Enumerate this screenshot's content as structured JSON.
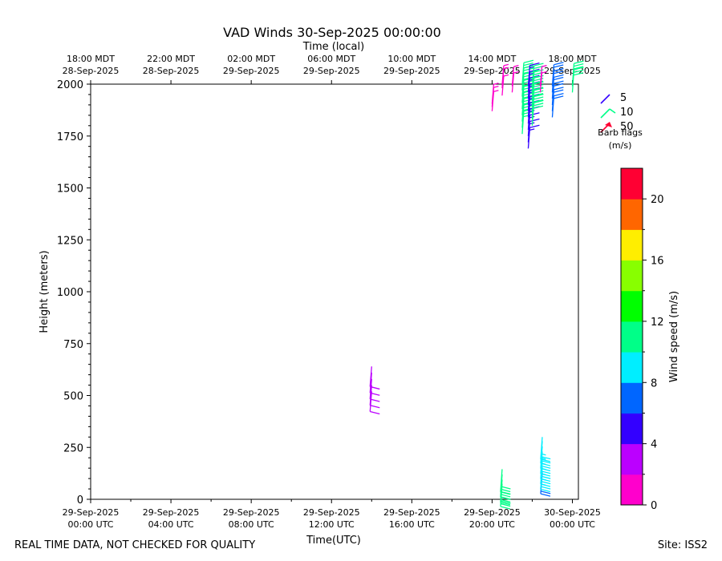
{
  "chart_data": {
    "type": "barb",
    "title": "VAD Winds 30-Sep-2025 00:00:00",
    "top_axis_label": "Time (local)",
    "xlabel": "Time(UTC)",
    "ylabel": "Height (meters)",
    "ylim": [
      0,
      2000
    ],
    "y_ticks": [
      "0",
      "250",
      "500",
      "750",
      "1000",
      "1250",
      "1500",
      "1750",
      "2000"
    ],
    "x_ticks_utc": [
      {
        "line1": "29-Sep-2025",
        "line2": "00:00 UTC"
      },
      {
        "line1": "29-Sep-2025",
        "line2": "04:00 UTC"
      },
      {
        "line1": "29-Sep-2025",
        "line2": "08:00 UTC"
      },
      {
        "line1": "29-Sep-2025",
        "line2": "12:00 UTC"
      },
      {
        "line1": "29-Sep-2025",
        "line2": "16:00 UTC"
      },
      {
        "line1": "29-Sep-2025",
        "line2": "20:00 UTC"
      },
      {
        "line1": "30-Sep-2025",
        "line2": "00:00 UTC"
      }
    ],
    "x_ticks_local": [
      {
        "line1": "18:00 MDT",
        "line2": "28-Sep-2025"
      },
      {
        "line1": "22:00 MDT",
        "line2": "28-Sep-2025"
      },
      {
        "line1": "02:00 MDT",
        "line2": "29-Sep-2025"
      },
      {
        "line1": "06:00 MDT",
        "line2": "29-Sep-2025"
      },
      {
        "line1": "10:00 MDT",
        "line2": "29-Sep-2025"
      },
      {
        "line1": "14:00 MDT",
        "line2": "29-Sep-2025"
      },
      {
        "line1": "18:00 MDT",
        "line2": "29-Sep-2025"
      }
    ],
    "barb_legend": {
      "entries": [
        "5",
        "10",
        "50"
      ],
      "caption1": "Barb flags",
      "caption2": "(m/s)"
    },
    "colorbar": {
      "label": "Wind speed (m/s)",
      "ticks": [
        "0",
        "4",
        "8",
        "12",
        "16",
        "20"
      ],
      "colors": [
        "#ff00cc",
        "#bb00ff",
        "#3300ff",
        "#0066ff",
        "#00eeff",
        "#00ff88",
        "#00ff00",
        "#88ff00",
        "#ffee00",
        "#ff6600",
        "#ff0033"
      ]
    },
    "series": [
      {
        "hour": 14.0,
        "points": [
          [
            520,
            3
          ],
          [
            550,
            3
          ],
          [
            580,
            3
          ],
          [
            610,
            3
          ],
          [
            640,
            3
          ]
        ]
      },
      {
        "hour": 20.5,
        "points": [
          [
            75,
            11
          ],
          [
            95,
            11
          ],
          [
            120,
            11
          ],
          [
            145,
            11
          ]
        ]
      },
      {
        "hour": 22.5,
        "points": [
          [
            130,
            7
          ],
          [
            155,
            9
          ],
          [
            180,
            9
          ],
          [
            205,
            9
          ],
          [
            230,
            9
          ],
          [
            255,
            9
          ],
          [
            280,
            9
          ],
          [
            300,
            9
          ]
        ]
      },
      {
        "hour": 20.0,
        "points": [
          [
            1870,
            1
          ],
          [
            1890,
            1
          ],
          [
            1905,
            1
          ]
        ]
      },
      {
        "hour": 20.5,
        "points": [
          [
            1945,
            1
          ],
          [
            1980,
            1
          ],
          [
            1995,
            1
          ]
        ]
      },
      {
        "hour": 21.0,
        "points": [
          [
            1960,
            1
          ],
          [
            1990,
            1
          ]
        ]
      },
      {
        "hour": 21.5,
        "points": [
          [
            1760,
            11
          ],
          [
            1790,
            11
          ],
          [
            1820,
            11
          ],
          [
            1850,
            11
          ],
          [
            1880,
            10
          ],
          [
            1910,
            10
          ],
          [
            1940,
            10
          ],
          [
            1970,
            10
          ],
          [
            1995,
            10
          ]
        ]
      },
      {
        "hour": 21.8,
        "points": [
          [
            1690,
            5
          ],
          [
            1720,
            5
          ],
          [
            1750,
            5
          ],
          [
            1780,
            5
          ],
          [
            1810,
            5
          ],
          [
            1840,
            5
          ],
          [
            1870,
            5
          ],
          [
            1900,
            5
          ],
          [
            1930,
            5
          ],
          [
            1960,
            5
          ],
          [
            1990,
            5
          ]
        ]
      },
      {
        "hour": 22.0,
        "points": [
          [
            1800,
            11
          ],
          [
            1830,
            11
          ],
          [
            1860,
            11
          ],
          [
            1890,
            11
          ],
          [
            1920,
            11
          ],
          [
            1950,
            10
          ],
          [
            1980,
            10
          ]
        ]
      },
      {
        "hour": 22.4,
        "points": [
          [
            1960,
            1
          ],
          [
            1990,
            1
          ]
        ]
      },
      {
        "hour": 23.0,
        "points": [
          [
            1840,
            7
          ],
          [
            1870,
            7
          ],
          [
            1900,
            7
          ],
          [
            1930,
            7
          ],
          [
            1960,
            7
          ],
          [
            1990,
            7
          ]
        ]
      },
      {
        "hour": 24.0,
        "points": [
          [
            1960,
            11
          ],
          [
            1990,
            11
          ]
        ]
      }
    ]
  },
  "footer": {
    "left": "REAL TIME DATA, NOT CHECKED FOR QUALITY",
    "right": "Site: ISS2"
  }
}
